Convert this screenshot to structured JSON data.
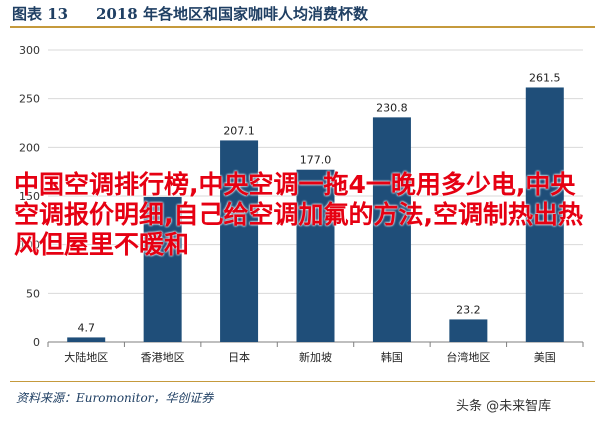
{
  "header": {
    "figure_label": "图表 13",
    "title": "2018 年各地区和国家咖啡人均消费杯数"
  },
  "chart_data": {
    "type": "bar",
    "categories": [
      "大陆地区",
      "香港地区",
      "日本",
      "新加坡",
      "韩国",
      "台湾地区",
      "美国"
    ],
    "values": [
      4.7,
      149,
      207.1,
      177.0,
      230.8,
      23.2,
      261.5
    ],
    "data_labels": [
      "4.7",
      "",
      "207.1",
      "177.0",
      "230.8",
      "23.2",
      "261.5"
    ],
    "ylim": [
      0,
      300
    ],
    "yticks": [
      0,
      50,
      100,
      150,
      200,
      250,
      300
    ],
    "grid": true,
    "bar_color": "#1f4e79",
    "title": "",
    "xlabel": "",
    "ylabel": ""
  },
  "footer": {
    "source": "资料来源：Euromonitor，华创证券"
  },
  "watermark": "头条 @未来智库",
  "overlay_text": "中国空调排行榜,中央空调一拖4一晚用多少电,中央空调报价明细,自己给空调加氟的方法,空调制热出热风但屋里不暖和"
}
